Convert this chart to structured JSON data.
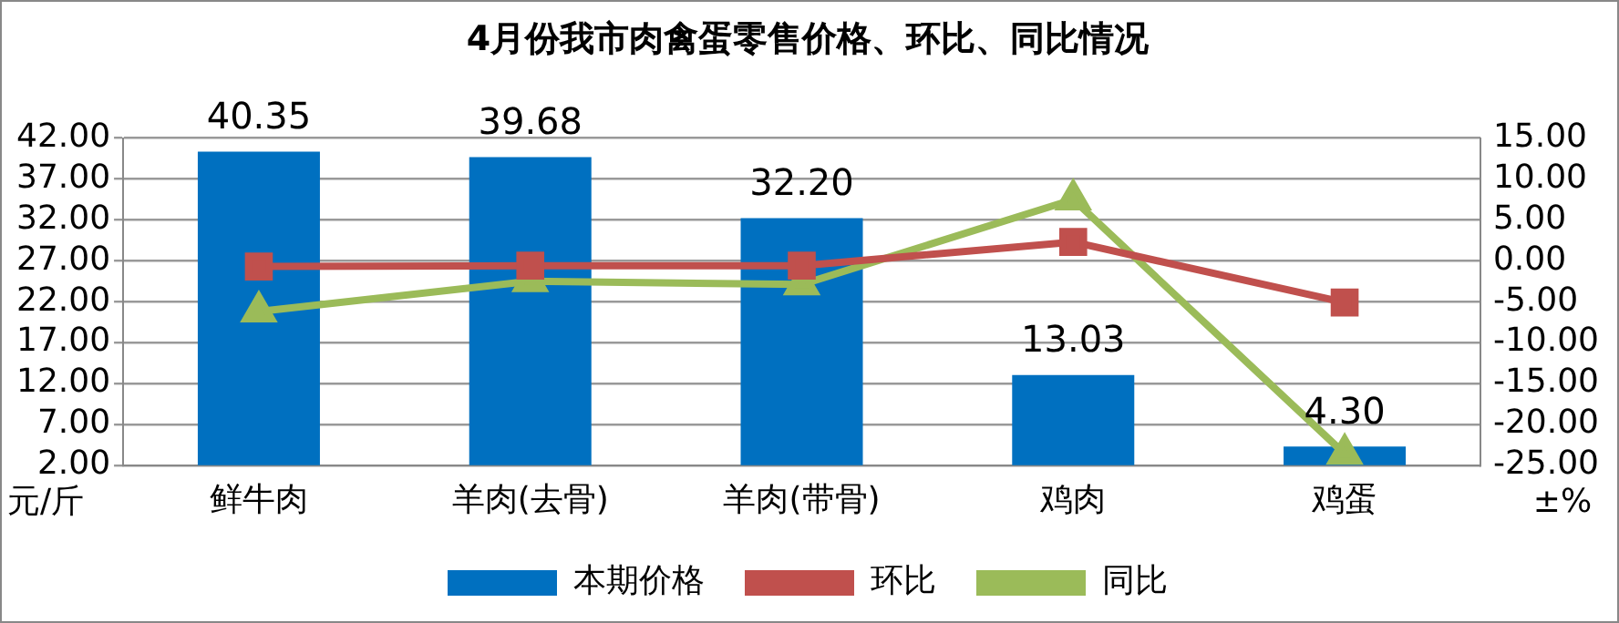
{
  "chart_data": {
    "type": "bar",
    "title": "4月份我市肉禽蛋零售价格、环比、同比情况",
    "categories": [
      "鲜牛肉",
      "羊肉(去骨)",
      "羊肉(带骨)",
      "鸡肉",
      "鸡蛋"
    ],
    "series": [
      {
        "name": "本期价格",
        "color": "#0070c0",
        "values": [
          40.35,
          39.68,
          32.2,
          13.03,
          4.3
        ],
        "value_labels": [
          "40.35",
          "39.68",
          "32.20",
          "13.03",
          "4.30"
        ]
      },
      {
        "name": "环比",
        "type": "line",
        "axis": "y2",
        "color": "#c0504d",
        "marker": "square",
        "values": [
          -0.7,
          -0.6,
          -0.6,
          2.3,
          -5.1
        ]
      },
      {
        "name": "同比",
        "type": "line",
        "axis": "y2",
        "color": "#9bbb59",
        "marker": "triangle",
        "values": [
          -6.2,
          -2.5,
          -2.9,
          7.5,
          -23.6
        ]
      }
    ],
    "ylabel": "元/斤",
    "y2label": "±%",
    "ylim": [
      2,
      42
    ],
    "yticks": [
      {
        "value": 2,
        "label": "2.00"
      },
      {
        "value": 7,
        "label": "7.00"
      },
      {
        "value": 12,
        "label": "12.00"
      },
      {
        "value": 17,
        "label": "17.00"
      },
      {
        "value": 22,
        "label": "22.00"
      },
      {
        "value": 27,
        "label": "27.00"
      },
      {
        "value": 32,
        "label": "32.00"
      },
      {
        "value": 37,
        "label": "37.00"
      },
      {
        "value": 42,
        "label": "42.00"
      }
    ],
    "y2lim": [
      -25,
      15
    ],
    "y2ticks": [
      {
        "value": -25,
        "label": "-25.00"
      },
      {
        "value": -20,
        "label": "-20.00"
      },
      {
        "value": -15,
        "label": "-15.00"
      },
      {
        "value": -10,
        "label": "-10.00"
      },
      {
        "value": -5,
        "label": "-5.00"
      },
      {
        "value": 0,
        "label": "0.00"
      },
      {
        "value": 5,
        "label": "5.00"
      },
      {
        "value": 10,
        "label": "10.00"
      },
      {
        "value": 15,
        "label": "15.00"
      }
    ],
    "grid": "y",
    "legend": "bottom"
  }
}
